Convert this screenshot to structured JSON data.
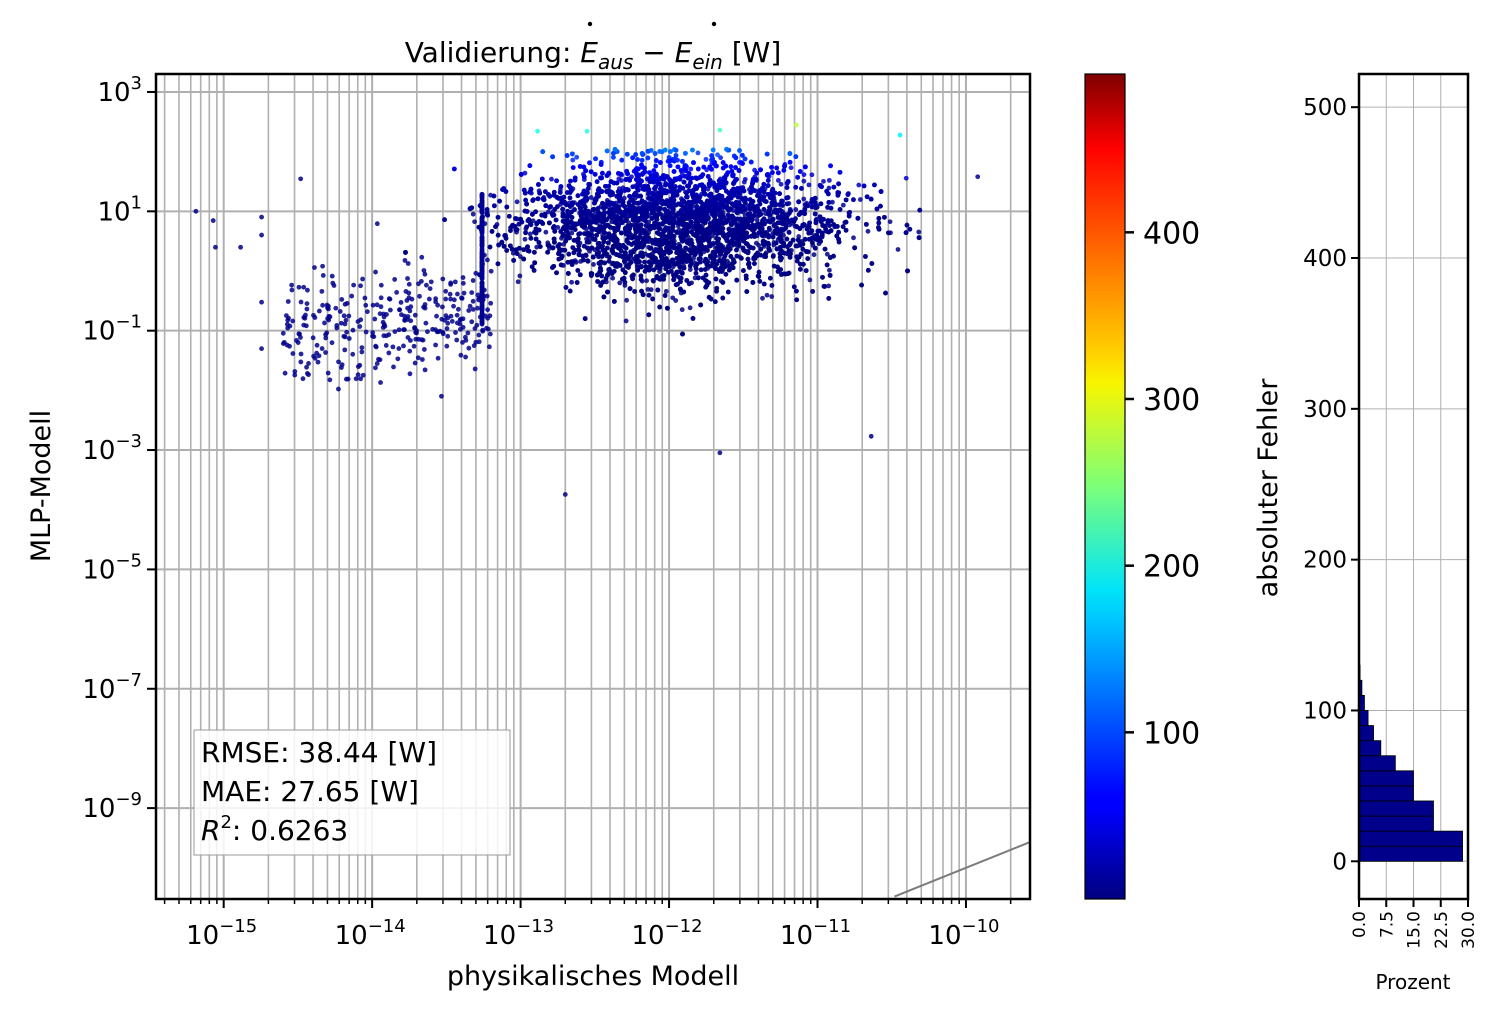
{
  "chart_data": [
    {
      "type": "scatter",
      "title": "Validierung: Ė_aus − Ė_ein [W]",
      "title_parts": {
        "prefix": "Validierung: ",
        "a_sym": "E",
        "a_sub": "aus",
        "op": " − ",
        "b_sym": "E",
        "b_sub": "ein",
        "suffix": " [W]"
      },
      "xlabel": "physikalisches Modell",
      "ylabel": "MLP-Modell",
      "xscale": "log",
      "yscale": "log",
      "xlim": [
        3.5e-16,
        2.7e-10
      ],
      "ylim": [
        3e-11,
        2000
      ],
      "xticks": [
        1e-15,
        1e-14,
        1e-13,
        1e-12,
        1e-11,
        1e-10
      ],
      "xtick_labels": [
        {
          "base": "10",
          "exp": "−15"
        },
        {
          "base": "10",
          "exp": "−14"
        },
        {
          "base": "10",
          "exp": "−13"
        },
        {
          "base": "10",
          "exp": "−12"
        },
        {
          "base": "10",
          "exp": "−11"
        },
        {
          "base": "10",
          "exp": "−10"
        }
      ],
      "yticks": [
        1e-09,
        1e-07,
        1e-05,
        0.001,
        0.1,
        10,
        1000
      ],
      "ytick_labels": [
        {
          "base": "10",
          "exp": "−9"
        },
        {
          "base": "10",
          "exp": "−7"
        },
        {
          "base": "10",
          "exp": "−5"
        },
        {
          "base": "10",
          "exp": "−3"
        },
        {
          "base": "10",
          "exp": "−1"
        },
        {
          "base": "10",
          "exp": "1"
        },
        {
          "base": "10",
          "exp": "3"
        }
      ],
      "grid": true,
      "color_by": "absoluter Fehler",
      "colormap": "jet",
      "reference_line": "y = x",
      "stats": {
        "rmse_line": "RMSE: 38.44 [W]",
        "mae_line": "MAE: 27.65 [W]",
        "r2_label": "R",
        "r2_exp": "2",
        "r2_value": ": 0.6263"
      },
      "points_note": "dense cloud, x ≈ 1e-13 … 1e-10, y ≈ 0.03 … 100; sparse tail down to x ≈ 6e-16",
      "points": [
        {
          "x": 6.5e-16,
          "y": 10,
          "err": 5
        },
        {
          "x": 8.5e-16,
          "y": 7,
          "err": 5
        },
        {
          "x": 8.8e-16,
          "y": 2.5,
          "err": 5
        },
        {
          "x": 1.3e-15,
          "y": 2.5,
          "err": 5
        },
        {
          "x": 1.8e-15,
          "y": 8,
          "err": 5
        },
        {
          "x": 1.8e-15,
          "y": 4,
          "err": 5
        },
        {
          "x": 1.8e-15,
          "y": 0.3,
          "err": 5
        },
        {
          "x": 1.8e-15,
          "y": 0.05,
          "err": 5
        },
        {
          "x": 2.7e-15,
          "y": 0.15,
          "err": 5
        },
        {
          "x": 3.3e-15,
          "y": 35,
          "err": 5
        },
        {
          "x": 2.8e-13,
          "y": 220,
          "err": 200
        },
        {
          "x": 1.3e-13,
          "y": 220,
          "err": 200
        },
        {
          "x": 2.2e-12,
          "y": 230,
          "err": 220
        },
        {
          "x": 7.2e-12,
          "y": 280,
          "err": 280
        },
        {
          "x": 3.6e-11,
          "y": 190,
          "err": 180
        },
        {
          "x": 2e-13,
          "y": 0.00018,
          "err": 5
        },
        {
          "x": 2.2e-12,
          "y": 0.0009,
          "err": 5
        },
        {
          "x": 2.3e-11,
          "y": 0.0017,
          "err": 5
        },
        {
          "x": 1.2e-10,
          "y": 38,
          "err": 10
        }
      ]
    },
    {
      "type": "colorbar",
      "colormap": "jet",
      "range": [
        0,
        495
      ],
      "ticks": [
        100,
        200,
        300,
        400
      ],
      "tick_labels": [
        "100",
        "200",
        "300",
        "400"
      ]
    },
    {
      "type": "bar",
      "orientation": "horizontal",
      "xlabel": "Prozent",
      "ylabel": "absoluter Fehler",
      "xlim": [
        0,
        30
      ],
      "ylim": [
        -25,
        522
      ],
      "xticks": [
        0,
        7.5,
        15,
        22.5,
        30
      ],
      "xtick_labels": [
        "0.0",
        "7.5",
        "15.0",
        "22.5",
        "30.0"
      ],
      "yticks": [
        0,
        100,
        200,
        300,
        400,
        500
      ],
      "ytick_labels": [
        "0",
        "100",
        "200",
        "300",
        "400",
        "500"
      ],
      "bin_width": 10,
      "bin_starts": [
        0,
        10,
        20,
        30,
        40,
        50,
        60,
        70,
        80,
        90,
        100,
        110,
        120
      ],
      "values": [
        28.5,
        28.5,
        20.5,
        20.5,
        15,
        15,
        10,
        6,
        4,
        2.5,
        1.5,
        0.8,
        0.3
      ],
      "bar_color": "#00008b"
    }
  ],
  "colors": {
    "grid": "#b0b0b0",
    "reference_line": "#7a7a7a",
    "hist_bar": "#00008b"
  }
}
